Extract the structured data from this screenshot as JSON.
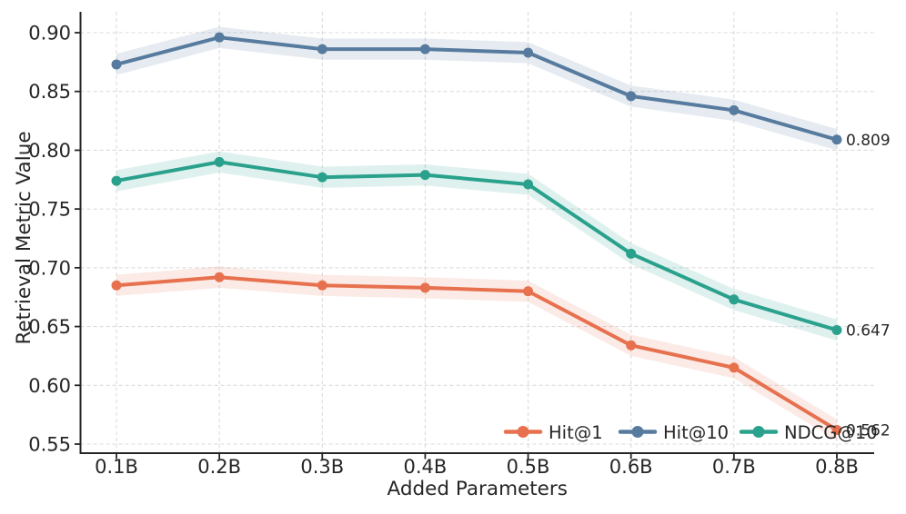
{
  "chart_data": {
    "type": "line",
    "title": "",
    "xlabel": "Added Parameters",
    "ylabel": "Retrieval Metric Value",
    "categories": [
      "0.1B",
      "0.2B",
      "0.3B",
      "0.4B",
      "0.5B",
      "0.6B",
      "0.7B",
      "0.8B"
    ],
    "y_ticks": [
      0.55,
      0.6,
      0.65,
      0.7,
      0.75,
      0.8,
      0.85,
      0.9
    ],
    "ylim": [
      0.542,
      0.92
    ],
    "grid": true,
    "grid_style": "dashed",
    "legend_position": "lower-right-inside",
    "series": [
      {
        "name": "Hit@1",
        "color": "#E7714E",
        "values": [
          0.685,
          0.692,
          0.685,
          0.683,
          0.68,
          0.634,
          0.615,
          0.562
        ],
        "end_label": "0.562",
        "band_halfwidth": 0.009
      },
      {
        "name": "Hit@10",
        "color": "#577B9E",
        "values": [
          0.873,
          0.896,
          0.886,
          0.886,
          0.883,
          0.846,
          0.834,
          0.809
        ],
        "end_label": "0.809",
        "band_halfwidth": 0.009
      },
      {
        "name": "NDCG@10",
        "color": "#2AA18C",
        "values": [
          0.774,
          0.79,
          0.777,
          0.779,
          0.771,
          0.712,
          0.673,
          0.647
        ],
        "end_label": "0.647",
        "band_halfwidth": 0.009
      }
    ],
    "colors": {
      "grid": "#cfcfcf",
      "spine": "#262626",
      "text": "#262626",
      "background": "#ffffff"
    }
  }
}
